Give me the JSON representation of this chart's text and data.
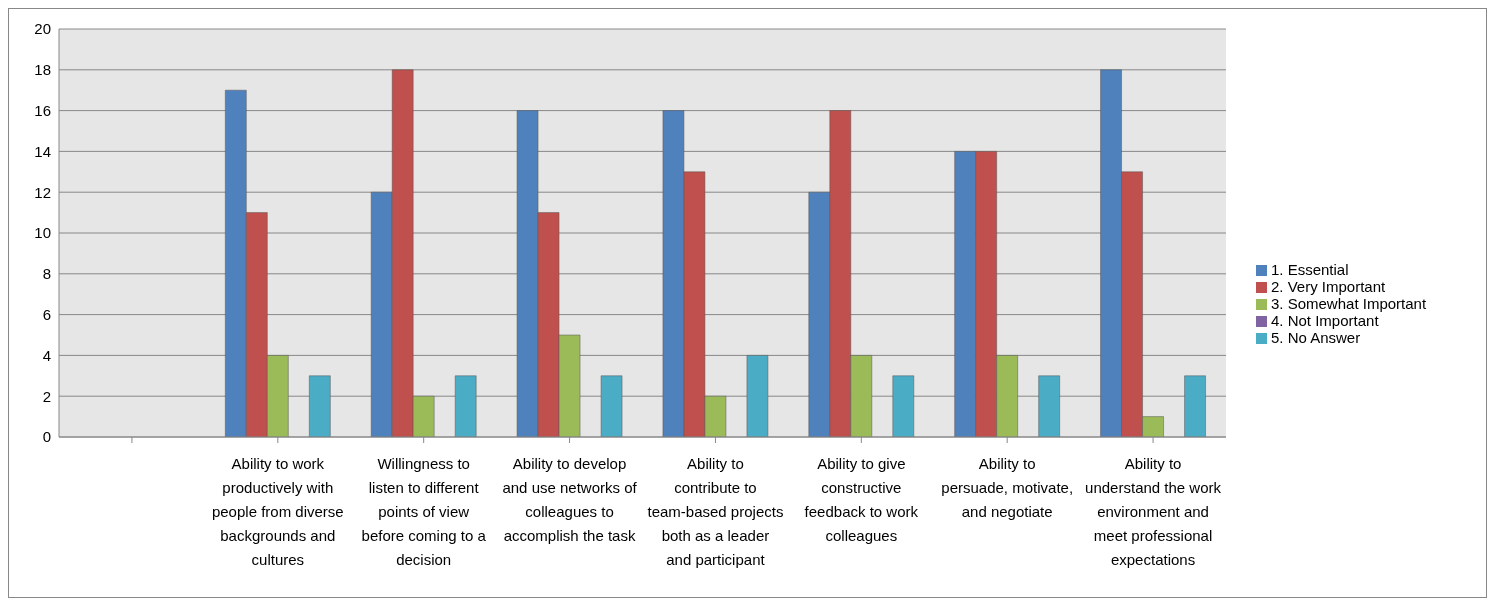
{
  "chart_data": {
    "type": "bar",
    "categories": [
      null,
      "Ability to work productively with people from diverse backgrounds and cultures",
      "Willingness to listen to different points of view before coming to a decision",
      "Ability to develop and use networks of colleagues to accomplish the task",
      "Ability to contribute to team-based projects both as a leader and participant",
      "Ability to give constructive feedback to work colleagues",
      "Ability to persuade, motivate, and negotiate",
      "Ability to understand the work environment and meet professional expectations"
    ],
    "series": [
      {
        "name": "1. Essential",
        "color": "#4f81bd",
        "values": [
          null,
          17,
          12,
          16,
          16,
          12,
          14,
          18
        ]
      },
      {
        "name": "2. Very Important",
        "color": "#c0504d",
        "values": [
          null,
          11,
          18,
          11,
          13,
          16,
          14,
          13
        ]
      },
      {
        "name": "3. Somewhat Important",
        "color": "#9bbb59",
        "values": [
          null,
          4,
          2,
          5,
          2,
          4,
          4,
          1
        ]
      },
      {
        "name": "4. Not Important",
        "color": "#8064a2",
        "values": [
          null,
          0,
          0,
          0,
          0,
          0,
          0,
          0
        ]
      },
      {
        "name": "5. No Answer",
        "color": "#4bacc6",
        "values": [
          null,
          3,
          3,
          3,
          4,
          3,
          3,
          3
        ]
      }
    ],
    "ylim": [
      0,
      20
    ],
    "yticks": [
      0,
      2,
      4,
      6,
      8,
      10,
      12,
      14,
      16,
      18,
      20
    ],
    "grid": "y",
    "legend": "right"
  }
}
